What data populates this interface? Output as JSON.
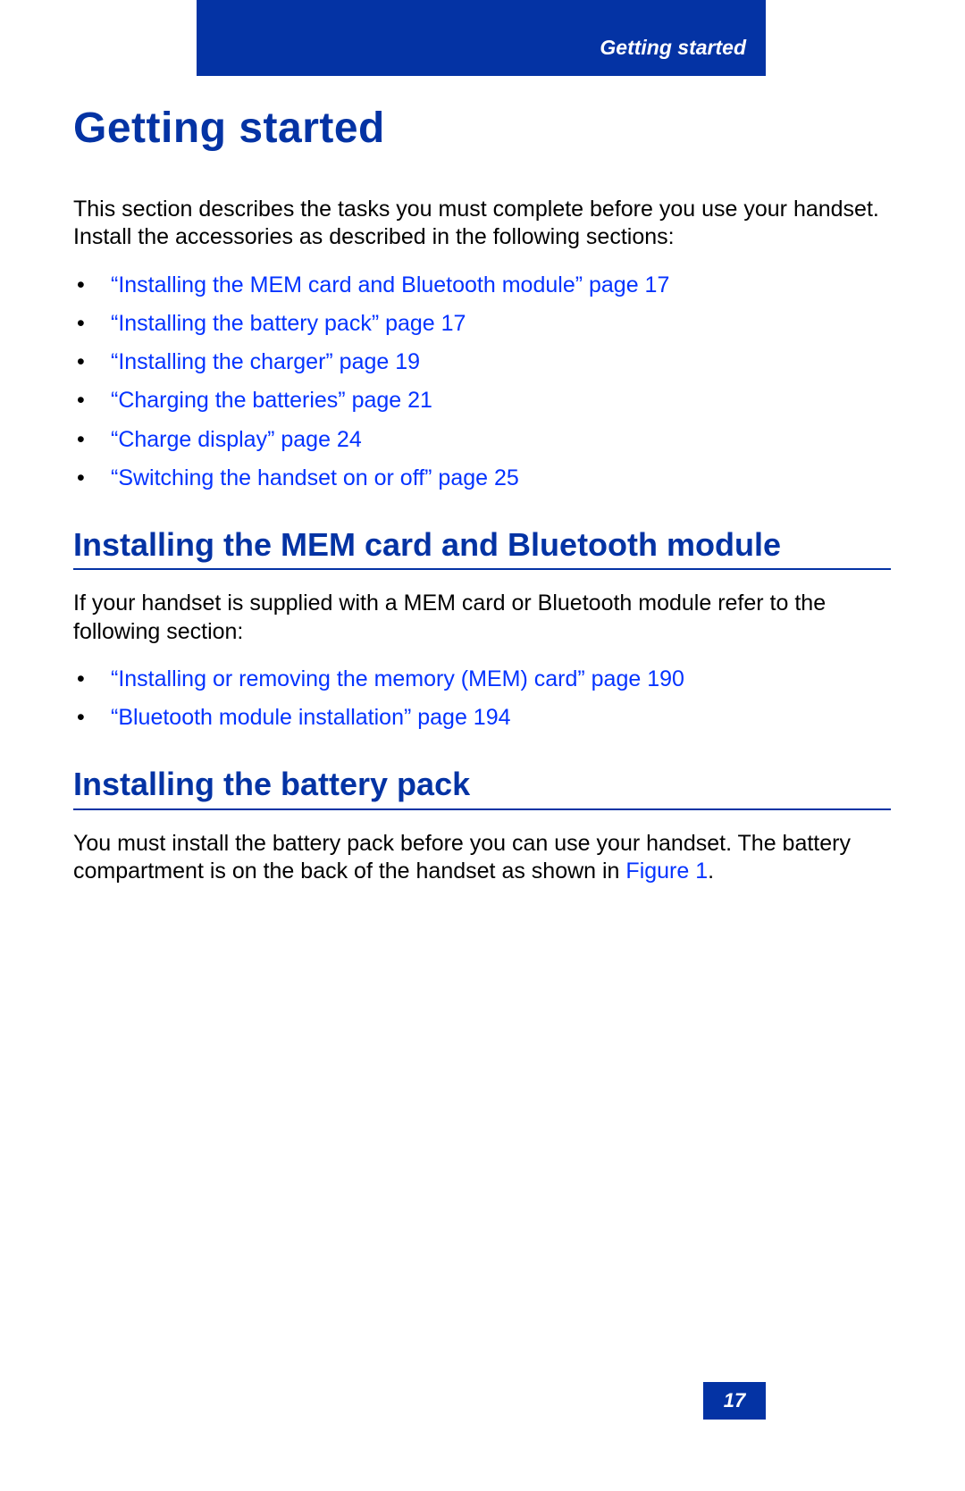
{
  "header": {
    "running_head": "Getting started"
  },
  "title": "Getting started",
  "intro": "This section describes the tasks you must complete before you use your handset. Install the accessories as described in the following sections:",
  "toc_links": [
    "“Installing the MEM card and Bluetooth module” page 17",
    "“Installing the battery pack” page 17",
    "“Installing the charger” page 19",
    "“Charging the batteries” page 21",
    "“Charge display” page 24",
    "“Switching the handset on or off” page 25"
  ],
  "section1": {
    "heading": "Installing the MEM card and Bluetooth module",
    "body": "If your handset is supplied with a MEM card or Bluetooth module refer to the following section:",
    "links": [
      "“Installing or removing the memory (MEM) card” page 190",
      "“Bluetooth module installation” page 194"
    ]
  },
  "section2": {
    "heading": "Installing the battery pack",
    "body_pre": "You must install the battery pack before you can use your handset. The battery compartment is on the back of the handset as shown in ",
    "body_link": "Figure 1",
    "body_post": "."
  },
  "footer": {
    "page_number": "17"
  },
  "colors": {
    "brand_blue": "#0433a4",
    "link_blue": "#0433ff",
    "text": "#000000",
    "background": "#ffffff"
  }
}
